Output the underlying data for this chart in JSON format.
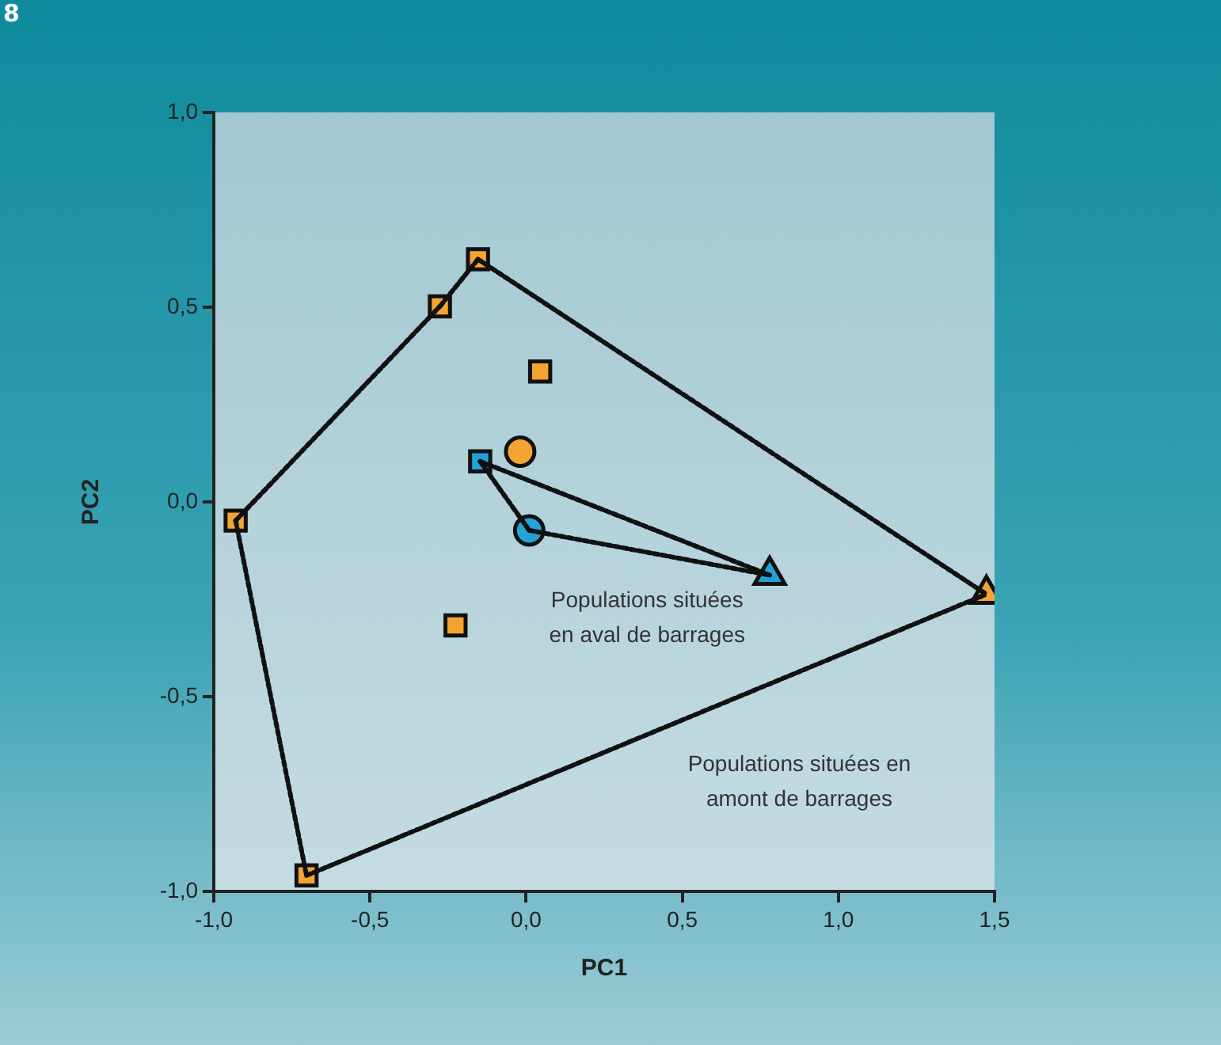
{
  "chart_data": {
    "type": "scatter",
    "xlabel": "PC1",
    "ylabel": "PC2",
    "xlim": [
      -1,
      1.5
    ],
    "ylim": [
      -1,
      1
    ],
    "xticks": [
      {
        "value": -1,
        "label": "-1,0"
      },
      {
        "value": -0.5,
        "label": "-0,5"
      },
      {
        "value": 0,
        "label": "0,0"
      },
      {
        "value": 0.5,
        "label": "0,5"
      },
      {
        "value": 1,
        "label": "1,0"
      },
      {
        "value": 1.5,
        "label": "1,5"
      }
    ],
    "yticks": [
      {
        "value": -1,
        "label": "-1,0"
      },
      {
        "value": -0.5,
        "label": "-0,5"
      },
      {
        "value": 0,
        "label": "0,0"
      },
      {
        "value": 0.5,
        "label": "0,5"
      },
      {
        "value": 1,
        "label": "1,0"
      }
    ],
    "grid": false,
    "legend": false,
    "series": [
      {
        "type": "line",
        "color": "#111111",
        "marker": "none",
        "line_style": "dotted",
        "x": [
          -0.154,
          1.474
        ],
        "values": [
          0.623,
          -0.237
        ]
      },
      {
        "type": "line",
        "color": "#111111",
        "marker": "none",
        "line_style": "dotted",
        "x": [
          -0.703,
          1.474
        ],
        "values": [
          -0.959,
          -0.237
        ]
      },
      {
        "type": "line",
        "color": "#111111",
        "marker": "none",
        "line_style": "dotted",
        "x": [
          -0.93,
          -0.703
        ],
        "values": [
          -0.048,
          -0.959
        ]
      },
      {
        "type": "line",
        "color": "#111111",
        "marker": "none",
        "line_style": "dotted",
        "x": [
          -0.93,
          -0.276
        ],
        "values": [
          -0.048,
          0.502
        ]
      },
      {
        "type": "line",
        "color": "#111111",
        "marker": "none",
        "line_style": "dotted",
        "x": [
          -0.276,
          -0.154
        ],
        "values": [
          0.502,
          0.623
        ]
      },
      {
        "type": "line",
        "color": "#111111",
        "marker": "none",
        "line_style": "dotted",
        "x": [
          -0.147,
          0.78
        ],
        "values": [
          0.104,
          -0.188
        ]
      },
      {
        "type": "line",
        "color": "#111111",
        "marker": "none",
        "line_style": "dotted",
        "x": [
          0.01,
          0.78
        ],
        "values": [
          -0.073,
          -0.188
        ]
      },
      {
        "type": "line",
        "color": "#111111",
        "marker": "none",
        "line_style": "dotted",
        "x": [
          -0.147,
          0.01
        ],
        "values": [
          0.104,
          -0.073
        ]
      },
      {
        "type": "scatter",
        "color": "#f4a531",
        "marker": "square",
        "x": [
          -0.154,
          -0.276,
          0.045,
          -0.93,
          -0.226,
          -0.703
        ],
        "values": [
          0.623,
          0.502,
          0.335,
          -0.048,
          -0.317,
          -0.959
        ]
      },
      {
        "type": "scatter",
        "color": "#f4a531",
        "marker": "circle",
        "x": [
          -0.019
        ],
        "values": [
          0.129
        ]
      },
      {
        "type": "scatter",
        "color": "#f4a531",
        "marker": "triangle",
        "x": [
          1.474
        ],
        "values": [
          -0.237
        ]
      },
      {
        "type": "scatter",
        "color": "#22a3d8",
        "marker": "square",
        "x": [
          -0.147
        ],
        "values": [
          0.104
        ]
      },
      {
        "type": "scatter",
        "color": "#22a3d8",
        "marker": "circle",
        "x": [
          0.01
        ],
        "values": [
          -0.073
        ]
      },
      {
        "type": "scatter",
        "color": "#22a3d8",
        "marker": "triangle",
        "x": [
          0.78
        ],
        "values": [
          -0.188
        ]
      }
    ],
    "annotations": [
      "8",
      "Populations situées\nen aval de barrages",
      "Populations situées en\namont de barrages"
    ]
  }
}
